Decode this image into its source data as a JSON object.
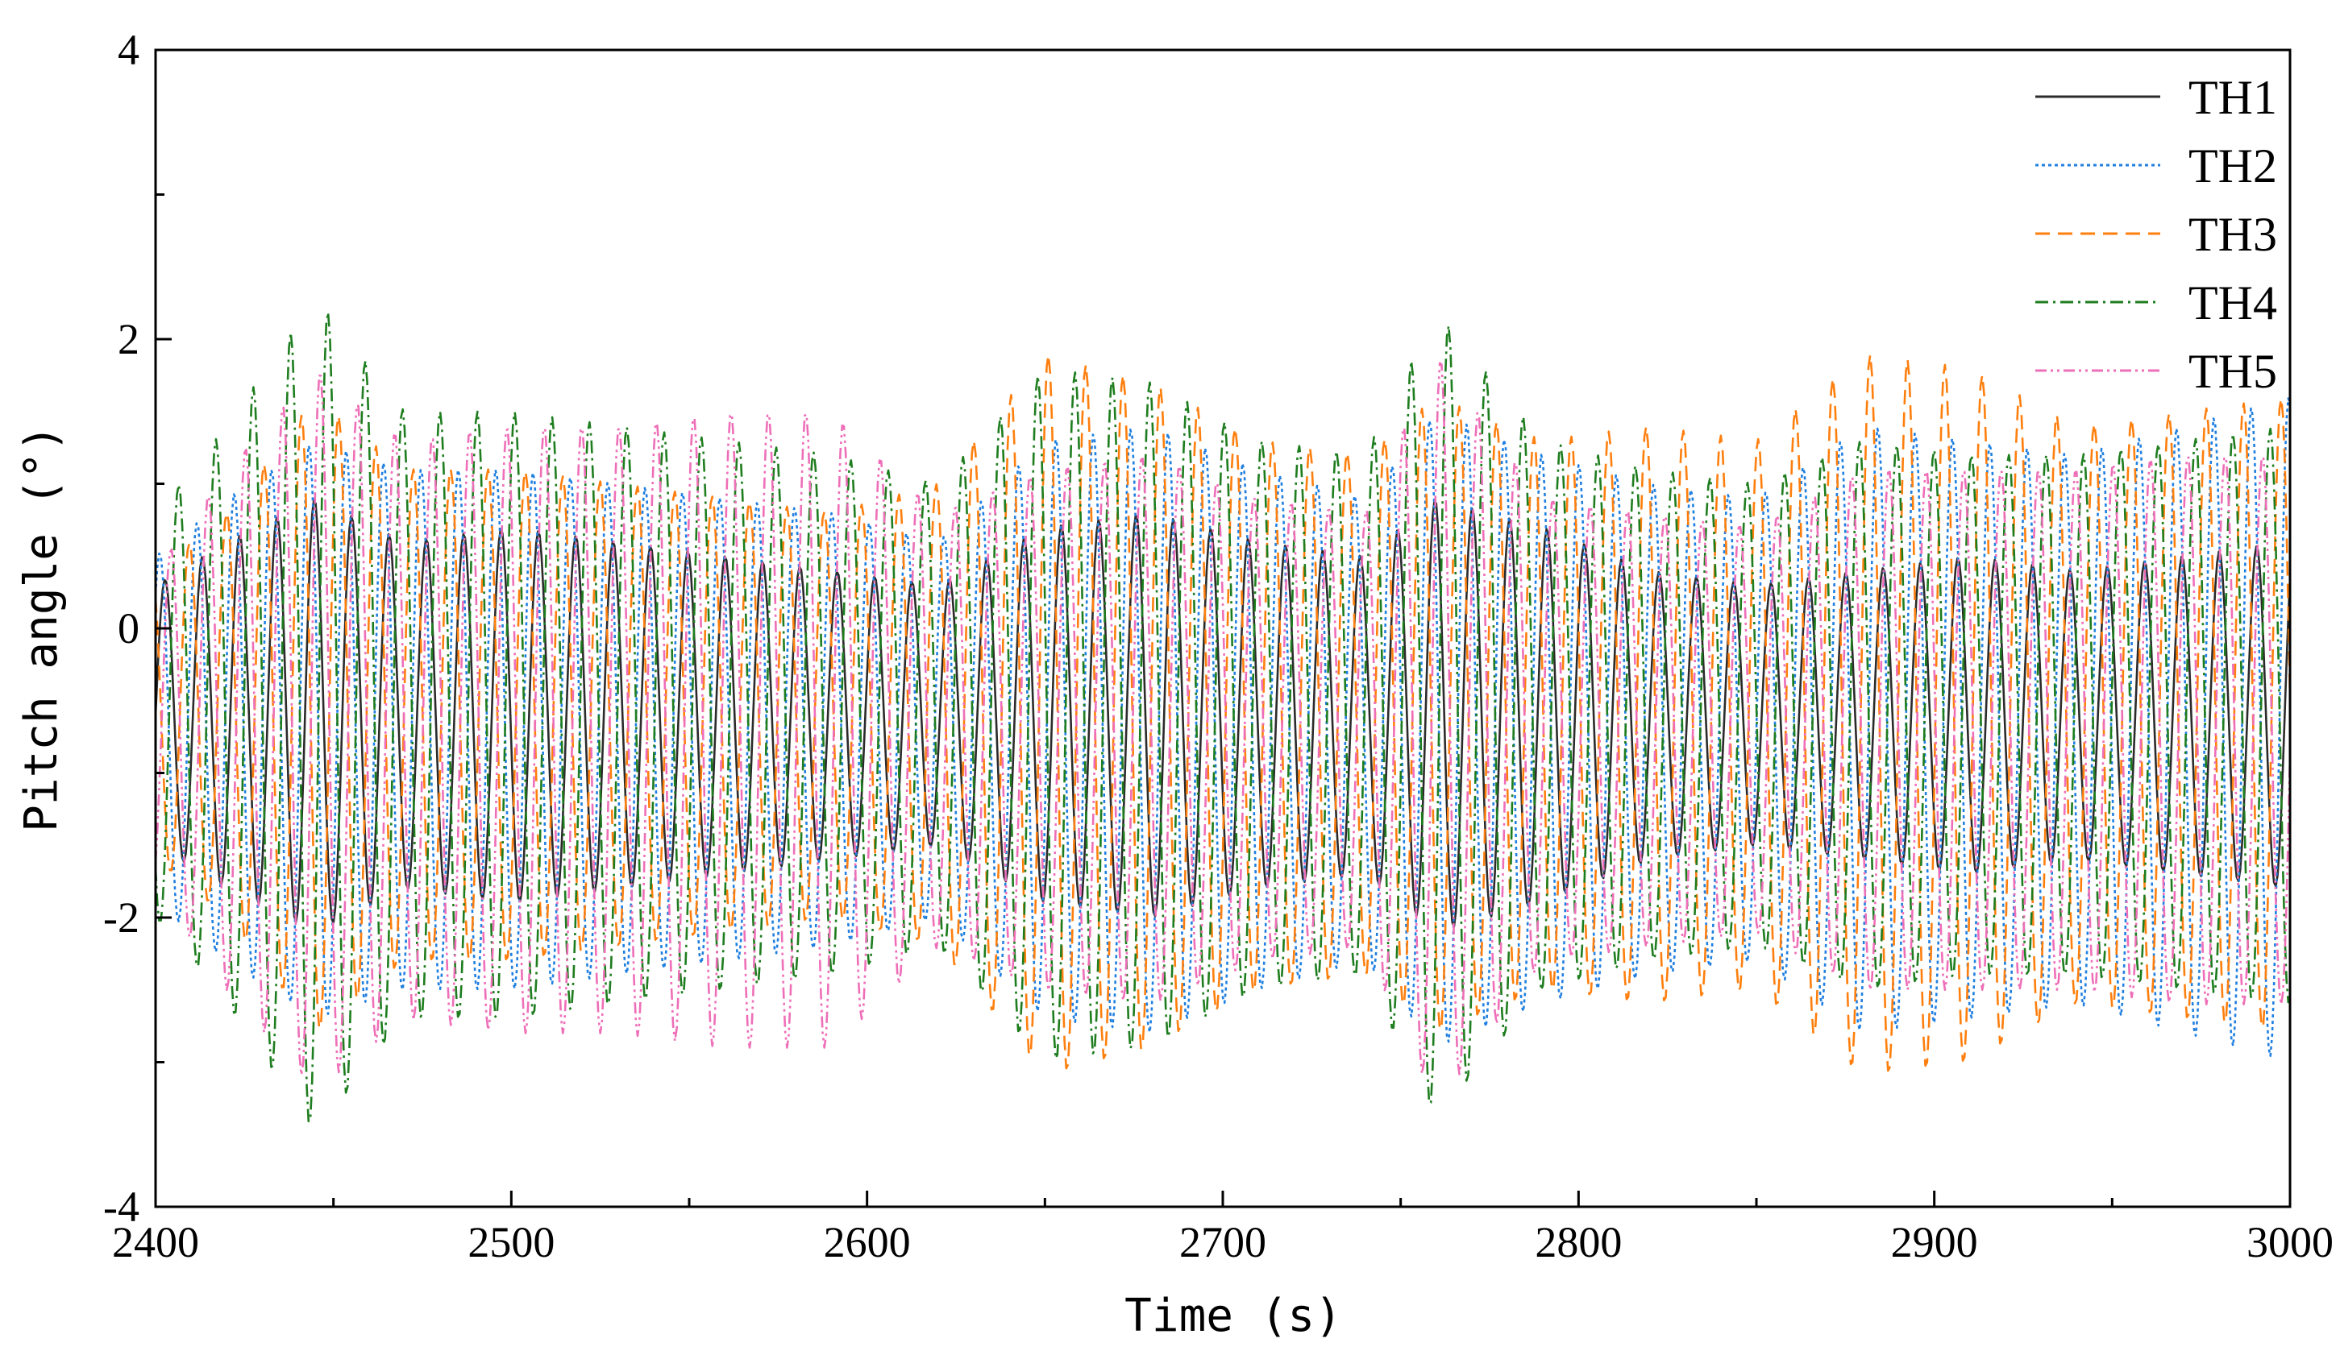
{
  "chart_data": {
    "type": "line",
    "title": "",
    "xlabel": "Time (s)",
    "ylabel": "Pitch angle (°)",
    "xlim": [
      2400,
      3000
    ],
    "ylim": [
      -4,
      4
    ],
    "xticks": [
      2400,
      2500,
      2600,
      2700,
      2800,
      2900,
      3000
    ],
    "xtick_labels": [
      "2400",
      "2500",
      "2600",
      "2700",
      "2800",
      "2900",
      "3000"
    ],
    "yticks": [
      -4,
      -2,
      0,
      2,
      4
    ],
    "ytick_labels": [
      "-4",
      "-2",
      "0",
      "2",
      "4"
    ],
    "legend_position": "top-right",
    "sample_step": 0.5,
    "wave_period_s": 10.5,
    "series": [
      {
        "name": "TH1",
        "color": "#2b2b2b",
        "dash": "solid",
        "mean": -0.6,
        "phase": 0.0,
        "env_t": [
          2400,
          2420,
          2445,
          2470,
          2500,
          2530,
          2560,
          2590,
          2620,
          2650,
          2680,
          2710,
          2740,
          2760,
          2790,
          2820,
          2850,
          2880,
          2910,
          2940,
          2970,
          3000
        ],
        "env_a": [
          0.9,
          1.2,
          1.5,
          1.2,
          1.3,
          1.2,
          1.1,
          1.0,
          0.9,
          1.3,
          1.4,
          1.2,
          1.1,
          1.5,
          1.3,
          1.0,
          0.9,
          1.0,
          1.1,
          1.0,
          1.1,
          1.2
        ]
      },
      {
        "name": "TH2",
        "color": "#1f7fe0",
        "dash": "dotted",
        "mean": -0.7,
        "phase": 0.9,
        "env_t": [
          2400,
          2420,
          2445,
          2470,
          2500,
          2530,
          2560,
          2590,
          2620,
          2650,
          2680,
          2710,
          2740,
          2760,
          2790,
          2820,
          2850,
          2880,
          2910,
          2940,
          2970,
          3000
        ],
        "env_a": [
          1.2,
          1.6,
          2.0,
          1.8,
          1.8,
          1.7,
          1.6,
          1.5,
          1.3,
          2.0,
          2.1,
          1.8,
          1.6,
          2.2,
          1.9,
          1.7,
          1.6,
          2.1,
          2.0,
          1.9,
          2.1,
          2.3
        ]
      },
      {
        "name": "TH3",
        "color": "#ff7f0e",
        "dash": "dashed",
        "mean": -0.6,
        "phase": 2.2,
        "env_t": [
          2400,
          2420,
          2445,
          2470,
          2500,
          2530,
          2560,
          2590,
          2620,
          2650,
          2680,
          2710,
          2740,
          2760,
          2790,
          2820,
          2850,
          2880,
          2910,
          2940,
          2970,
          3000
        ],
        "env_a": [
          1.0,
          1.4,
          2.2,
          1.7,
          1.7,
          1.6,
          1.5,
          1.4,
          1.6,
          2.5,
          2.3,
          1.9,
          1.8,
          2.2,
          1.9,
          2.0,
          1.9,
          2.5,
          2.4,
          2.0,
          2.1,
          2.2
        ]
      },
      {
        "name": "TH4",
        "color": "#1e7d1e",
        "dash": "dashdot",
        "mean": -0.6,
        "phase": 4.0,
        "env_t": [
          2400,
          2420,
          2445,
          2470,
          2500,
          2530,
          2560,
          2590,
          2620,
          2650,
          2680,
          2710,
          2740,
          2760,
          2790,
          2820,
          2850,
          2880,
          2910,
          2940,
          2970,
          3000
        ],
        "env_a": [
          1.4,
          2.0,
          2.9,
          2.1,
          2.1,
          2.0,
          1.9,
          1.8,
          1.6,
          2.4,
          2.3,
          1.9,
          1.8,
          2.8,
          1.9,
          1.7,
          1.6,
          1.9,
          1.8,
          1.8,
          1.9,
          2.0
        ]
      },
      {
        "name": "TH5",
        "color": "#ee6fb8",
        "dash": "dashdotdot",
        "mean": -0.7,
        "phase": 5.3,
        "env_t": [
          2400,
          2420,
          2445,
          2470,
          2500,
          2530,
          2560,
          2590,
          2620,
          2650,
          2680,
          2710,
          2740,
          2760,
          2790,
          2820,
          2850,
          2880,
          2910,
          2940,
          2970,
          3000
        ],
        "env_a": [
          1.1,
          1.8,
          2.5,
          2.0,
          2.1,
          2.1,
          2.2,
          2.2,
          1.5,
          1.8,
          1.9,
          1.6,
          1.5,
          2.6,
          1.6,
          1.5,
          1.4,
          1.8,
          1.8,
          1.8,
          1.9,
          1.9
        ]
      }
    ]
  }
}
